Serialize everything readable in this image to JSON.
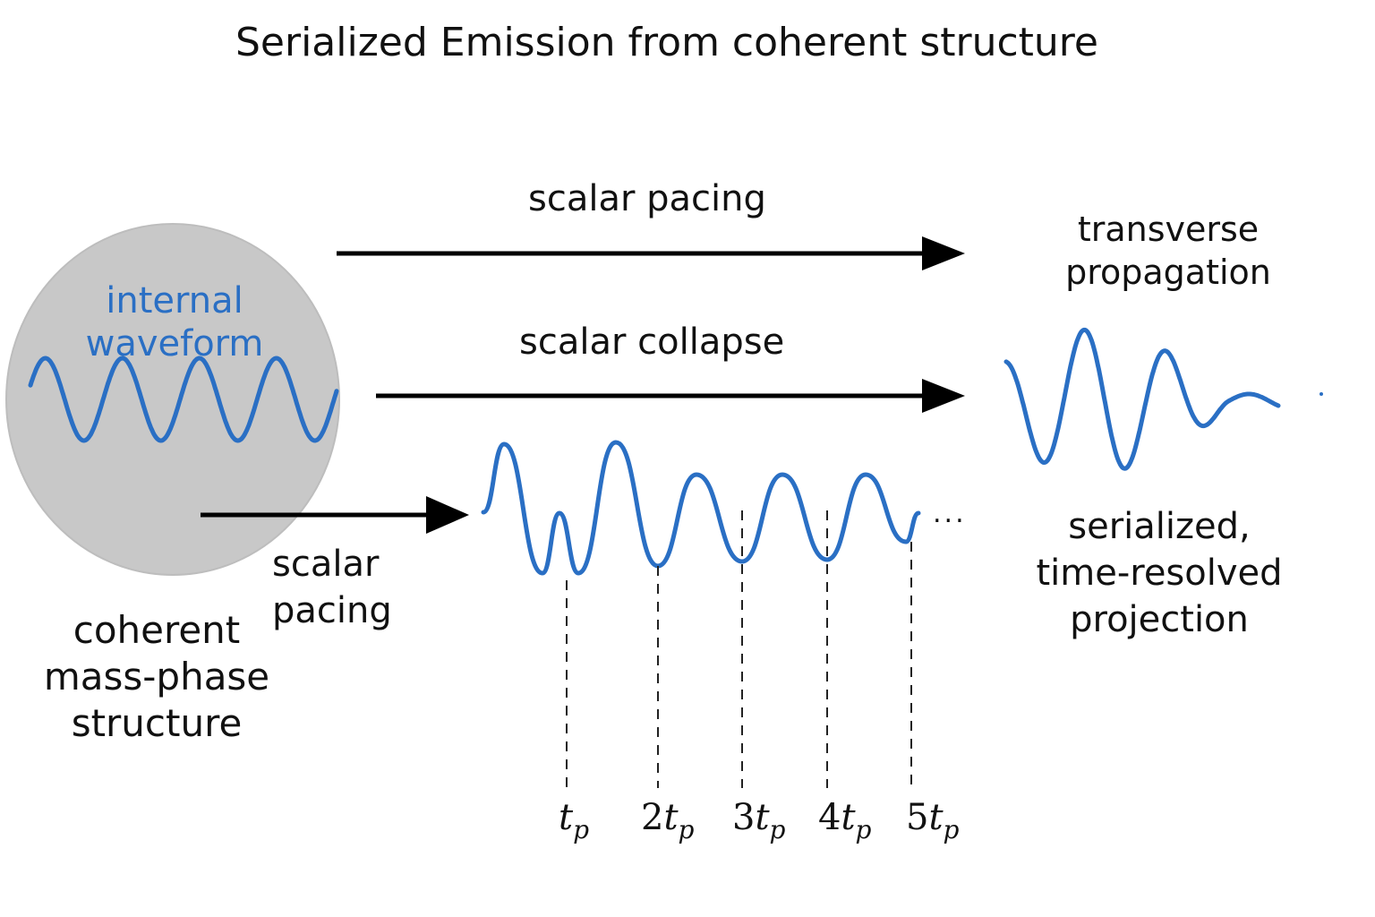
{
  "title": "Serialized Emission from coherent structure",
  "colors": {
    "wave": "#2a6fc4",
    "sphere": "#c8c8c8",
    "arrow": "#000000"
  },
  "sphere": {
    "label_line1": "internal",
    "label_line2": "waveform",
    "caption_line1": "coherent",
    "caption_line2": "mass-phase",
    "caption_line3": "structure"
  },
  "arrows": {
    "top": "scalar pacing",
    "middle": "scalar collapse",
    "bottom_line1": "scalar",
    "bottom_line2": "pacing"
  },
  "right": {
    "top_line1": "transverse",
    "top_line2": "propagation",
    "bottom_line1": "serialized,",
    "bottom_line2": "time-resolved",
    "bottom_line3": "projection"
  },
  "ellipsis": "...",
  "ticks": [
    {
      "coef": "",
      "var": "t",
      "sub": "p"
    },
    {
      "coef": "2",
      "var": "t",
      "sub": "p"
    },
    {
      "coef": "3",
      "var": "t",
      "sub": "p"
    },
    {
      "coef": "4",
      "var": "t",
      "sub": "p"
    },
    {
      "coef": "5",
      "var": "t",
      "sub": "p"
    }
  ]
}
